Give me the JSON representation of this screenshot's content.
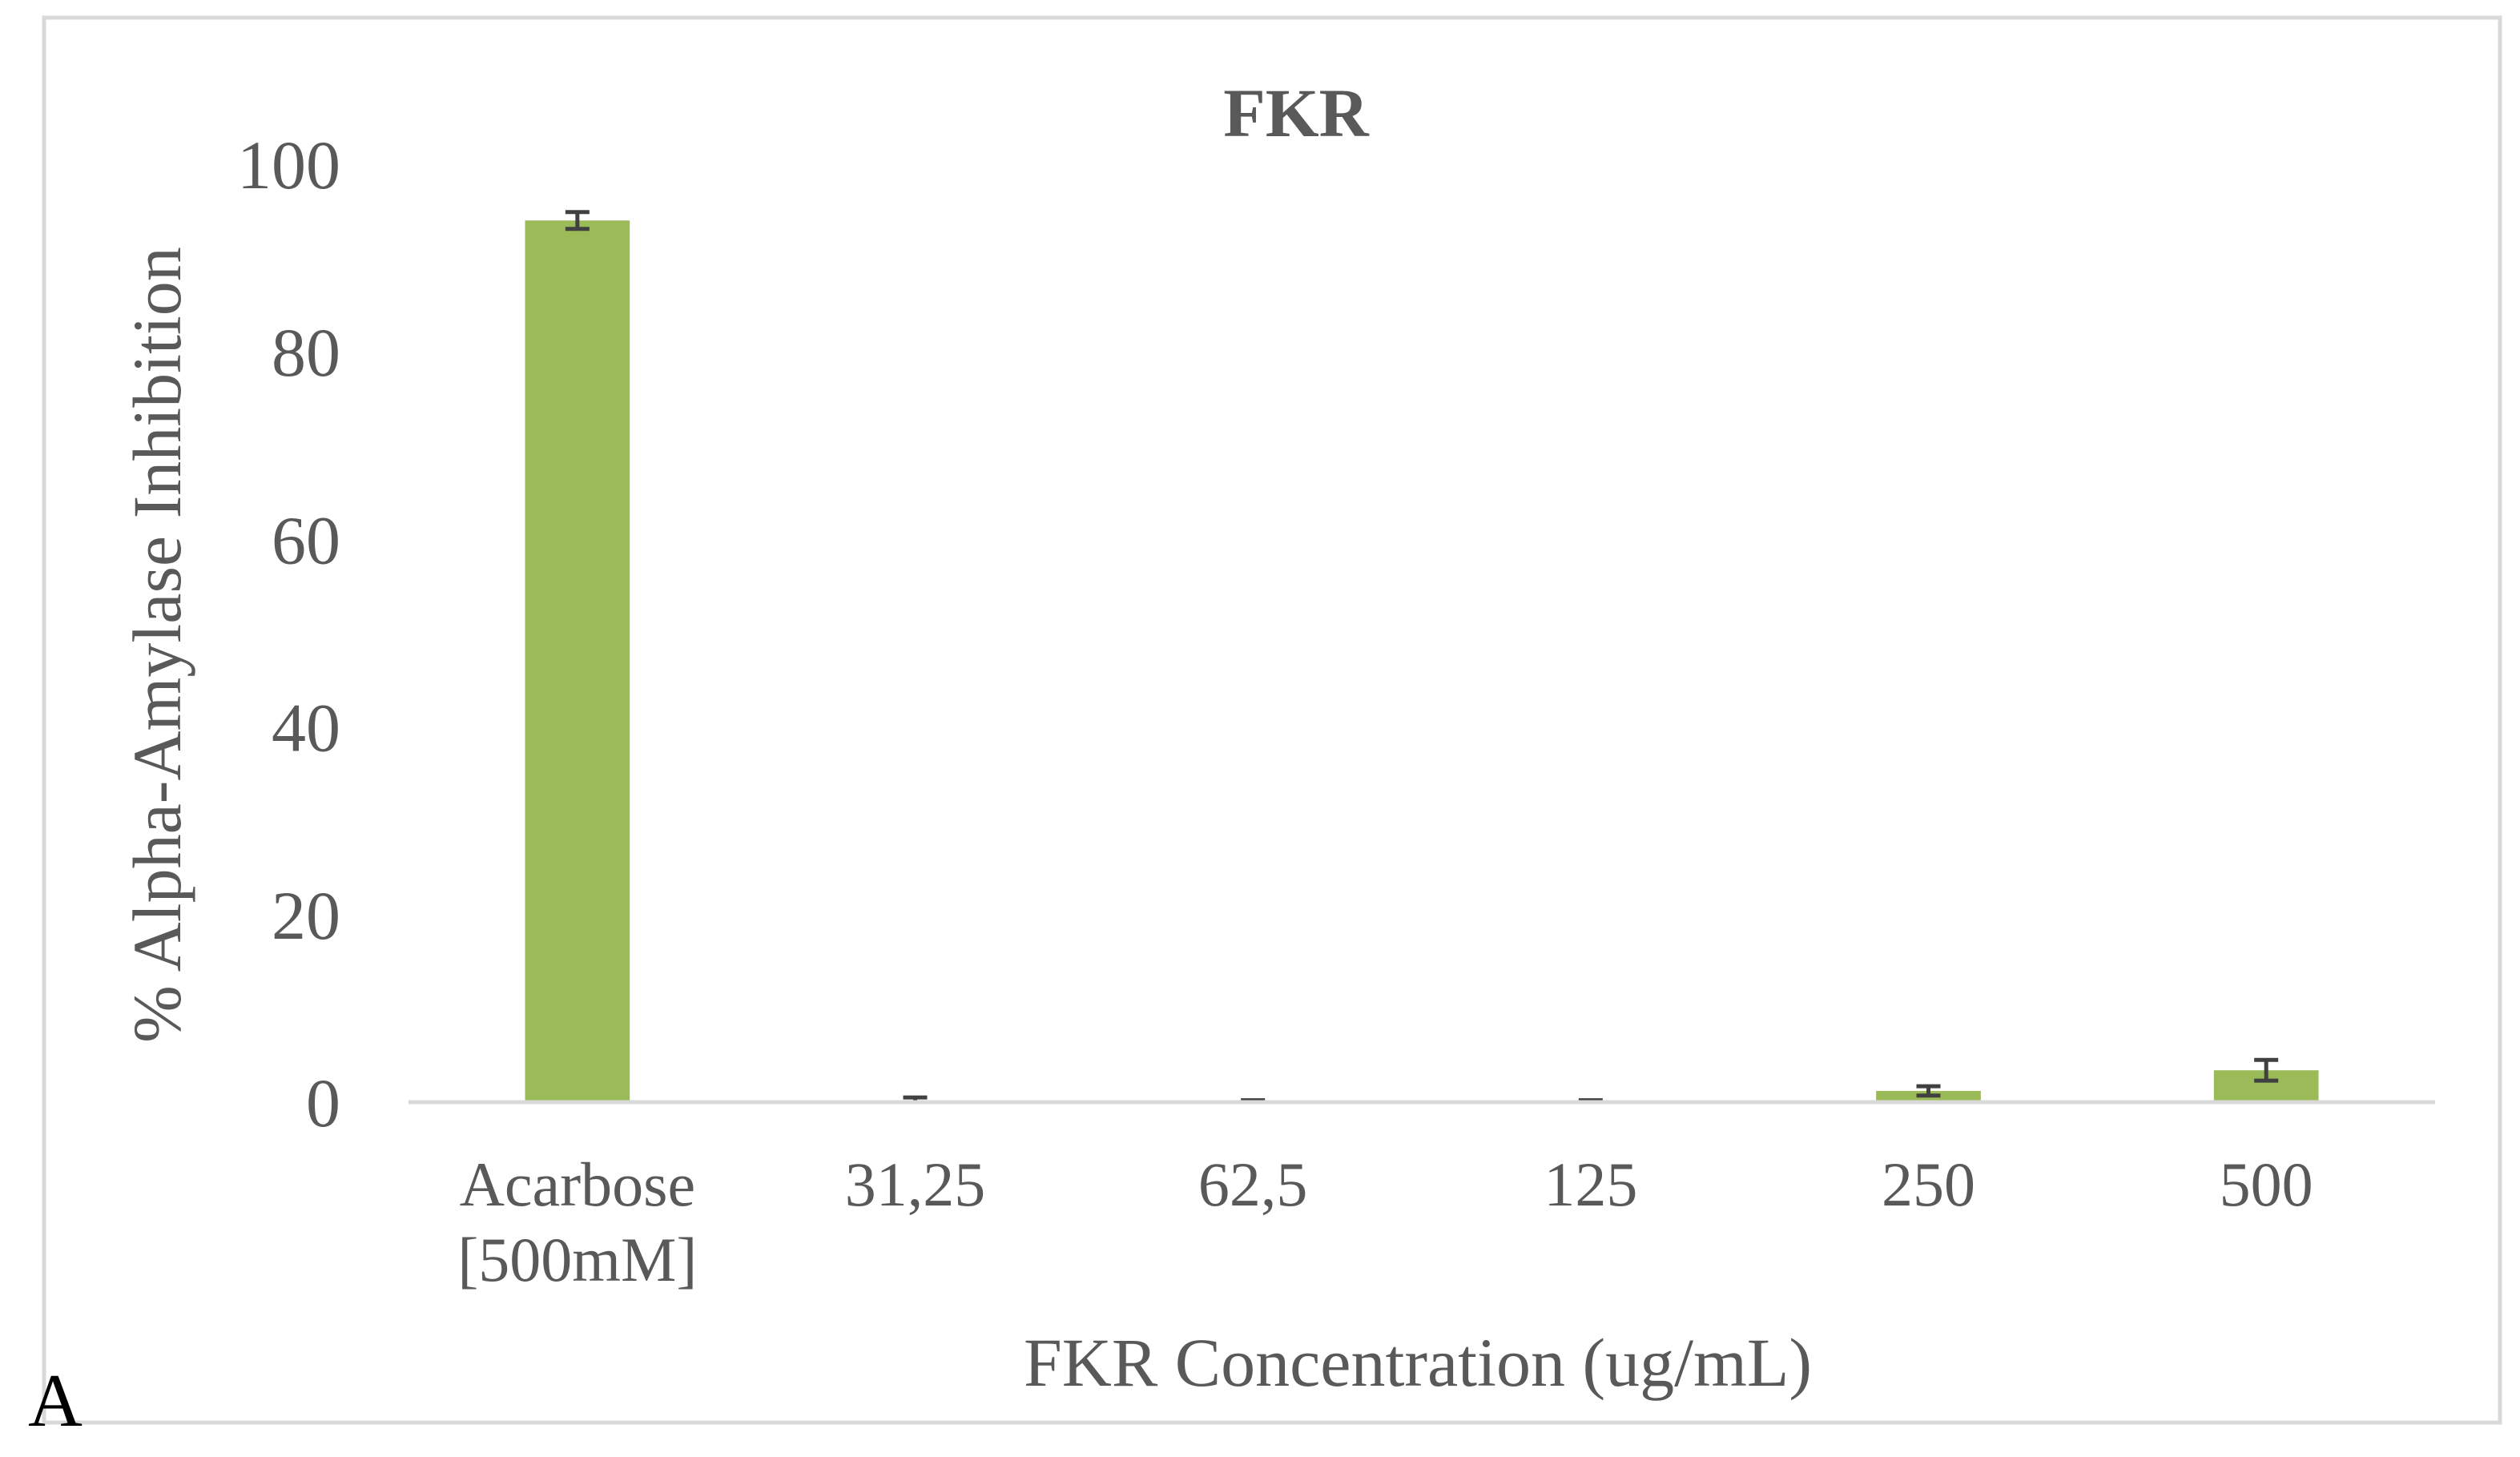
{
  "panel_label": "A",
  "chart_data": {
    "type": "bar",
    "title": "FKR",
    "xlabel": "FKR Concentration (ug/mL)",
    "ylabel": "% Alpha-Amylase Inhibition",
    "categories": [
      [
        "Acarbose",
        "[500mM]"
      ],
      [
        "31,25"
      ],
      [
        "62,5"
      ],
      [
        "125"
      ],
      [
        "250"
      ],
      [
        "500"
      ]
    ],
    "values": [
      94.0,
      0.2,
      0.1,
      0.1,
      1.2,
      3.4
    ],
    "errors": [
      0.9,
      0.3,
      0.1,
      0.1,
      0.5,
      1.1
    ],
    "ylim": [
      0,
      100
    ],
    "yticks": [
      0,
      20,
      40,
      60,
      80,
      100
    ],
    "grid": false,
    "legend": "none",
    "colors": {
      "bar": "#9bbb59",
      "error_bar": "#404040",
      "axis": "#d9d9d9",
      "text": "#595959",
      "frame": "#d9d9d9"
    }
  }
}
